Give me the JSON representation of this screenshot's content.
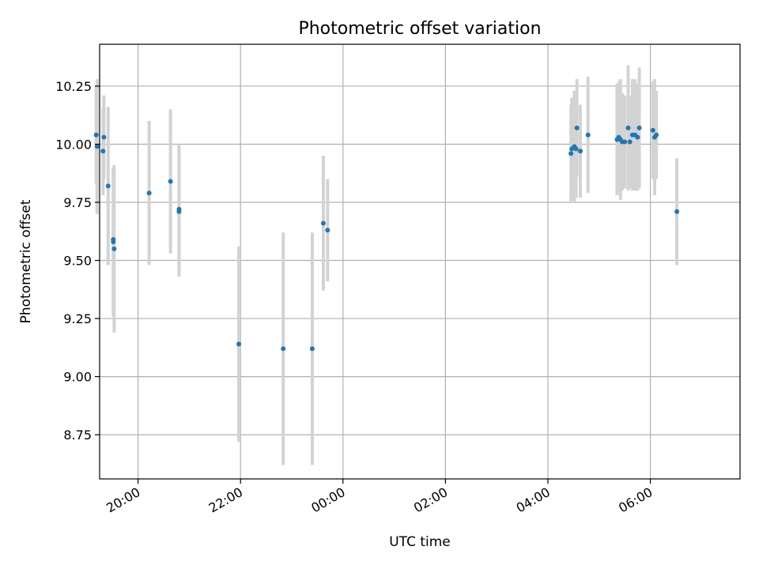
{
  "chart_data": {
    "type": "scatter",
    "title": "Photometric offset variation",
    "xlabel": "UTC time",
    "ylabel": "Photometric offset",
    "x_ticks": [
      "20:00",
      "22:00",
      "00:00",
      "02:00",
      "04:00",
      "06:00"
    ],
    "y_ticks": [
      "8.75",
      "9.00",
      "9.25",
      "9.50",
      "9.75",
      "10.00",
      "10.25"
    ],
    "xlim": [
      "19:15",
      "07:45"
    ],
    "ylim": [
      8.56,
      10.43
    ],
    "grid": true,
    "legend": "none",
    "colors": {
      "point": "#1f77b4",
      "errorbar": "#d3d3d3",
      "grid": "#b0b0b0"
    },
    "points": [
      {
        "x": "19:11",
        "y": 10.04,
        "err": 0.21
      },
      {
        "x": "19:12",
        "y": 9.99,
        "err": 0.29
      },
      {
        "x": "19:19",
        "y": 9.97,
        "err": 0.19
      },
      {
        "x": "19:20",
        "y": 10.03,
        "err": 0.18
      },
      {
        "x": "19:25",
        "y": 9.82,
        "err": 0.34
      },
      {
        "x": "19:31",
        "y": 9.59,
        "err": 0.31
      },
      {
        "x": "19:31",
        "y": 9.58,
        "err": 0.32
      },
      {
        "x": "19:32",
        "y": 9.55,
        "err": 0.36
      },
      {
        "x": "20:13",
        "y": 9.79,
        "err": 0.31
      },
      {
        "x": "20:38",
        "y": 9.84,
        "err": 0.31
      },
      {
        "x": "20:48",
        "y": 9.72,
        "err": 0.28
      },
      {
        "x": "20:48",
        "y": 9.71,
        "err": 0.28
      },
      {
        "x": "21:58",
        "y": 9.14,
        "err": 0.42
      },
      {
        "x": "22:50",
        "y": 9.12,
        "err": 0.5
      },
      {
        "x": "23:24",
        "y": 9.12,
        "err": 0.5
      },
      {
        "x": "23:37",
        "y": 9.66,
        "err": 0.29
      },
      {
        "x": "23:42",
        "y": 9.63,
        "err": 0.22
      },
      {
        "x": "04:27",
        "y": 9.96,
        "err": 0.21
      },
      {
        "x": "04:28",
        "y": 9.98,
        "err": 0.22
      },
      {
        "x": "04:31",
        "y": 9.99,
        "err": 0.24
      },
      {
        "x": "04:33",
        "y": 9.98,
        "err": 0.21
      },
      {
        "x": "04:34",
        "y": 10.07,
        "err": 0.21
      },
      {
        "x": "04:38",
        "y": 9.97,
        "err": 0.2
      },
      {
        "x": "04:47",
        "y": 10.04,
        "err": 0.25
      },
      {
        "x": "05:21",
        "y": 10.02,
        "err": 0.24
      },
      {
        "x": "05:23",
        "y": 10.03,
        "err": 0.24
      },
      {
        "x": "05:25",
        "y": 10.02,
        "err": 0.26
      },
      {
        "x": "05:27",
        "y": 10.01,
        "err": 0.21
      },
      {
        "x": "05:30",
        "y": 10.01,
        "err": 0.2
      },
      {
        "x": "05:34",
        "y": 10.07,
        "err": 0.27
      },
      {
        "x": "05:36",
        "y": 10.01,
        "err": 0.2
      },
      {
        "x": "05:39",
        "y": 10.04,
        "err": 0.24
      },
      {
        "x": "05:42",
        "y": 10.04,
        "err": 0.24
      },
      {
        "x": "05:45",
        "y": 10.03,
        "err": 0.23
      },
      {
        "x": "05:47",
        "y": 10.07,
        "err": 0.26
      },
      {
        "x": "06:03",
        "y": 10.06,
        "err": 0.21
      },
      {
        "x": "06:05",
        "y": 10.03,
        "err": 0.25
      },
      {
        "x": "06:07",
        "y": 10.04,
        "err": 0.19
      },
      {
        "x": "06:31",
        "y": 9.71,
        "err": 0.23
      }
    ]
  }
}
